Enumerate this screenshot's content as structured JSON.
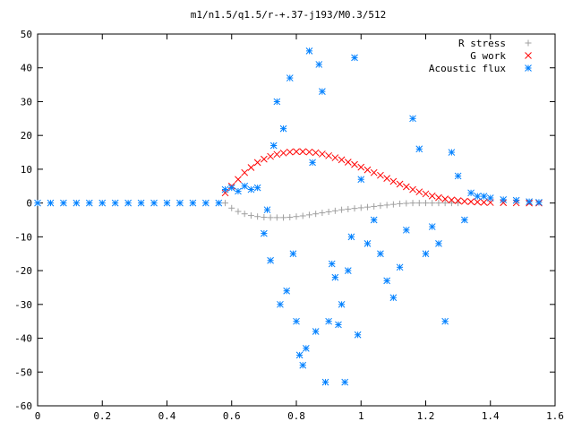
{
  "chart_data": {
    "type": "scatter",
    "title": "m1/n1.5/q1.5/r-+.37-j193/M0.3/512",
    "xlabel": "",
    "ylabel": "",
    "xlim": [
      0,
      1.6
    ],
    "ylim": [
      -60,
      50
    ],
    "x_ticks": [
      "0",
      "0.2",
      "0.4",
      "0.6",
      "0.8",
      "1",
      "1.2",
      "1.4",
      "1.6"
    ],
    "y_ticks": [
      "50",
      "40",
      "30",
      "20",
      "10",
      "0",
      "-10",
      "-20",
      "-30",
      "-40",
      "-50",
      "-60"
    ],
    "grid": false,
    "legend_position": "top-right",
    "series": [
      {
        "name": "R stress",
        "marker": "+",
        "color": "#a0a0a0",
        "points": [
          [
            0.58,
            0
          ],
          [
            0.6,
            -1.5
          ],
          [
            0.62,
            -2.5
          ],
          [
            0.64,
            -3.2
          ],
          [
            0.66,
            -3.7
          ],
          [
            0.68,
            -4.0
          ],
          [
            0.7,
            -4.2
          ],
          [
            0.72,
            -4.3
          ],
          [
            0.74,
            -4.3
          ],
          [
            0.76,
            -4.3
          ],
          [
            0.78,
            -4.2
          ],
          [
            0.8,
            -4.0
          ],
          [
            0.82,
            -3.8
          ],
          [
            0.84,
            -3.5
          ],
          [
            0.86,
            -3.2
          ],
          [
            0.88,
            -2.9
          ],
          [
            0.9,
            -2.6
          ],
          [
            0.92,
            -2.3
          ],
          [
            0.94,
            -2.0
          ],
          [
            0.96,
            -1.8
          ],
          [
            0.98,
            -1.6
          ],
          [
            1.0,
            -1.4
          ],
          [
            1.02,
            -1.2
          ],
          [
            1.04,
            -1.0
          ],
          [
            1.06,
            -0.8
          ],
          [
            1.08,
            -0.6
          ],
          [
            1.1,
            -0.4
          ],
          [
            1.12,
            -0.2
          ],
          [
            1.14,
            -0.1
          ],
          [
            1.16,
            0.0
          ],
          [
            1.18,
            0.0
          ],
          [
            1.2,
            0.0
          ],
          [
            1.22,
            0.0
          ],
          [
            1.24,
            0.0
          ],
          [
            1.26,
            0.0
          ],
          [
            1.28,
            0.0
          ],
          [
            1.3,
            0.0
          ]
        ]
      },
      {
        "name": "G work",
        "marker": "x",
        "color": "#ff0000",
        "points": [
          [
            0.58,
            3
          ],
          [
            0.6,
            5
          ],
          [
            0.62,
            7
          ],
          [
            0.64,
            9
          ],
          [
            0.66,
            10.5
          ],
          [
            0.68,
            12
          ],
          [
            0.7,
            13
          ],
          [
            0.72,
            13.8
          ],
          [
            0.74,
            14.4
          ],
          [
            0.76,
            14.8
          ],
          [
            0.78,
            15.1
          ],
          [
            0.8,
            15.2
          ],
          [
            0.82,
            15.2
          ],
          [
            0.84,
            15.1
          ],
          [
            0.86,
            14.9
          ],
          [
            0.88,
            14.5
          ],
          [
            0.9,
            14
          ],
          [
            0.92,
            13.4
          ],
          [
            0.94,
            12.8
          ],
          [
            0.96,
            12.1
          ],
          [
            0.98,
            11.4
          ],
          [
            1.0,
            10.6
          ],
          [
            1.02,
            9.8
          ],
          [
            1.04,
            9
          ],
          [
            1.06,
            8.2
          ],
          [
            1.08,
            7.3
          ],
          [
            1.1,
            6.4
          ],
          [
            1.12,
            5.6
          ],
          [
            1.14,
            4.8
          ],
          [
            1.16,
            4
          ],
          [
            1.18,
            3.3
          ],
          [
            1.2,
            2.7
          ],
          [
            1.22,
            2.1
          ],
          [
            1.24,
            1.6
          ],
          [
            1.26,
            1.2
          ],
          [
            1.28,
            0.9
          ],
          [
            1.3,
            0.7
          ],
          [
            1.32,
            0.5
          ],
          [
            1.34,
            0.4
          ],
          [
            1.36,
            0.3
          ],
          [
            1.38,
            0.2
          ],
          [
            1.4,
            0.15
          ],
          [
            1.44,
            0.1
          ],
          [
            1.48,
            0.05
          ],
          [
            1.52,
            0.0
          ],
          [
            1.55,
            0.0
          ]
        ]
      },
      {
        "name": "Acoustic flux",
        "marker": "*",
        "color": "#0080ff",
        "points": [
          [
            0.0,
            0
          ],
          [
            0.04,
            0
          ],
          [
            0.08,
            0
          ],
          [
            0.12,
            0
          ],
          [
            0.16,
            0
          ],
          [
            0.2,
            0
          ],
          [
            0.24,
            0
          ],
          [
            0.28,
            0
          ],
          [
            0.32,
            0
          ],
          [
            0.36,
            0
          ],
          [
            0.4,
            0
          ],
          [
            0.44,
            0
          ],
          [
            0.48,
            0
          ],
          [
            0.52,
            0
          ],
          [
            0.56,
            0
          ],
          [
            0.58,
            4
          ],
          [
            0.6,
            4.5
          ],
          [
            0.62,
            3.5
          ],
          [
            0.64,
            5
          ],
          [
            0.66,
            4
          ],
          [
            0.68,
            4.5
          ],
          [
            0.7,
            -9
          ],
          [
            0.71,
            -2
          ],
          [
            0.72,
            -17
          ],
          [
            0.73,
            17
          ],
          [
            0.74,
            30
          ],
          [
            0.75,
            -30
          ],
          [
            0.76,
            22
          ],
          [
            0.77,
            -26
          ],
          [
            0.78,
            37
          ],
          [
            0.79,
            -15
          ],
          [
            0.8,
            -35
          ],
          [
            0.81,
            -45
          ],
          [
            0.82,
            -48
          ],
          [
            0.83,
            -43
          ],
          [
            0.84,
            45
          ],
          [
            0.85,
            12
          ],
          [
            0.86,
            -38
          ],
          [
            0.87,
            41
          ],
          [
            0.88,
            33
          ],
          [
            0.89,
            -53
          ],
          [
            0.9,
            -35
          ],
          [
            0.91,
            -18
          ],
          [
            0.92,
            -22
          ],
          [
            0.93,
            -36
          ],
          [
            0.94,
            -30
          ],
          [
            0.95,
            -53
          ],
          [
            0.96,
            -20
          ],
          [
            0.97,
            -10
          ],
          [
            0.98,
            43
          ],
          [
            0.99,
            -39
          ],
          [
            1.0,
            7
          ],
          [
            1.02,
            -12
          ],
          [
            1.04,
            -5
          ],
          [
            1.06,
            -15
          ],
          [
            1.08,
            -23
          ],
          [
            1.1,
            -28
          ],
          [
            1.12,
            -19
          ],
          [
            1.14,
            -8
          ],
          [
            1.16,
            25
          ],
          [
            1.18,
            16
          ],
          [
            1.2,
            -15
          ],
          [
            1.22,
            -7
          ],
          [
            1.24,
            -12
          ],
          [
            1.26,
            -35
          ],
          [
            1.28,
            15
          ],
          [
            1.3,
            8
          ],
          [
            1.32,
            -5
          ],
          [
            1.34,
            3
          ],
          [
            1.36,
            2
          ],
          [
            1.38,
            2
          ],
          [
            1.4,
            1.5
          ],
          [
            1.44,
            1
          ],
          [
            1.48,
            0.8
          ],
          [
            1.52,
            0.4
          ],
          [
            1.55,
            0.2
          ]
        ]
      }
    ]
  }
}
